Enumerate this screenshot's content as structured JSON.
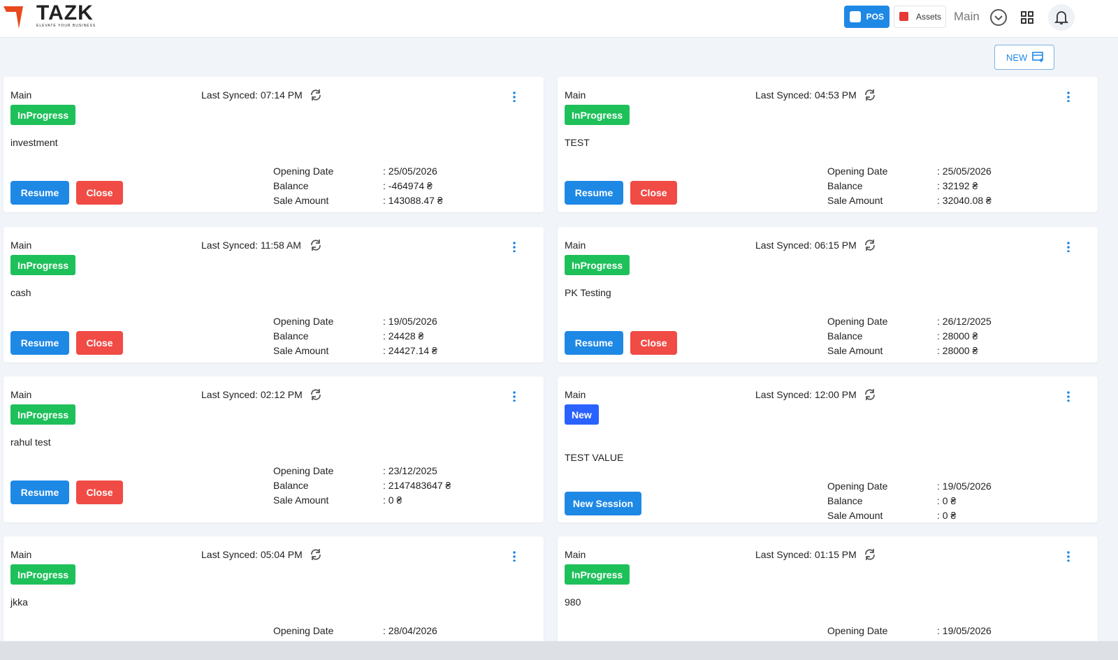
{
  "header": {
    "logo": "TAZK",
    "tagline": "ELEVATE YOUR BUSINESS",
    "pos_button": "POS",
    "assets_button": "Assets",
    "branch": "Main"
  },
  "new_button": "NEW",
  "cards": [
    {
      "branch": "Main",
      "status": "InProgress",
      "last_synced": "Last Synced: 07:14 PM",
      "name": "investment",
      "buttons": [
        "Resume",
        "Close"
      ],
      "fields": [
        {
          "label": "Opening Date",
          "value": ": 25/05/2026"
        },
        {
          "label": "Balance",
          "value": ": -464974 ₴"
        },
        {
          "label": "Sale Amount",
          "value": ": 143088.47 ₴"
        }
      ]
    },
    {
      "branch": "Main",
      "status": "InProgress",
      "last_synced": "Last Synced: 04:53 PM",
      "name": "TEST",
      "buttons": [
        "Resume",
        "Close"
      ],
      "fields": [
        {
          "label": "Opening Date",
          "value": ": 25/05/2026"
        },
        {
          "label": "Balance",
          "value": ": 32192 ₴"
        },
        {
          "label": "Sale Amount",
          "value": ": 32040.08 ₴"
        }
      ]
    },
    {
      "branch": "Main",
      "status": "InProgress",
      "last_synced": "Last Synced: 11:58 AM",
      "name": "cash",
      "buttons": [
        "Resume",
        "Close"
      ],
      "fields": [
        {
          "label": "Opening Date",
          "value": ": 19/05/2026"
        },
        {
          "label": "Balance",
          "value": ": 24428 ₴"
        },
        {
          "label": "Sale Amount",
          "value": ": 24427.14 ₴"
        }
      ]
    },
    {
      "branch": "Main",
      "status": "InProgress",
      "last_synced": "Last Synced: 06:15 PM",
      "name": "PK Testing",
      "buttons": [
        "Resume",
        "Close"
      ],
      "fields": [
        {
          "label": "Opening Date",
          "value": ": 26/12/2025"
        },
        {
          "label": "Balance",
          "value": ": 28000 ₴"
        },
        {
          "label": "Sale Amount",
          "value": ": 28000 ₴"
        }
      ]
    },
    {
      "branch": "Main",
      "status": "InProgress",
      "last_synced": "Last Synced: 02:12 PM",
      "name": "rahul test",
      "buttons": [
        "Resume",
        "Close"
      ],
      "fields": [
        {
          "label": "Opening Date",
          "value": ": 23/12/2025"
        },
        {
          "label": "Balance",
          "value": ": 2147483647 ₴"
        },
        {
          "label": "Sale Amount",
          "value": ": 0 ₴"
        }
      ]
    },
    {
      "branch": "Main",
      "status": "New",
      "last_synced": "Last Synced: 12:00 PM",
      "name": "TEST VALUE",
      "buttons": [
        "New Session"
      ],
      "fields": [
        {
          "label": "Opening Date",
          "value": ": 19/05/2026"
        },
        {
          "label": "Balance",
          "value": ": 0 ₴"
        },
        {
          "label": "Sale Amount",
          "value": ": 0 ₴"
        }
      ]
    },
    {
      "branch": "Main",
      "status": "InProgress",
      "last_synced": "Last Synced: 05:04 PM",
      "name": "jkka",
      "buttons": [],
      "fields": [
        {
          "label": "Opening Date",
          "value": ": 28/04/2026"
        }
      ]
    },
    {
      "branch": "Main",
      "status": "InProgress",
      "last_synced": "Last Synced: 01:15 PM",
      "name": "980",
      "buttons": [],
      "fields": [
        {
          "label": "Opening Date",
          "value": ": 19/05/2026"
        }
      ]
    }
  ]
}
